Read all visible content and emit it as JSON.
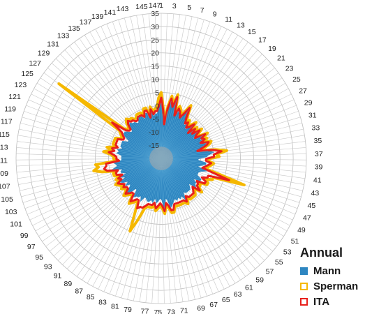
{
  "chart_data": {
    "type": "radar",
    "title": "",
    "r_ticks": [
      -15,
      -10,
      -5,
      0,
      5,
      10,
      15,
      20,
      25,
      30,
      35
    ],
    "r_range": [
      -20,
      35
    ],
    "categories": [
      1,
      2,
      3,
      4,
      5,
      6,
      7,
      8,
      9,
      10,
      11,
      12,
      13,
      14,
      15,
      16,
      17,
      18,
      19,
      20,
      21,
      22,
      23,
      24,
      25,
      26,
      27,
      28,
      29,
      30,
      31,
      32,
      33,
      34,
      35,
      36,
      37,
      38,
      39,
      40,
      41,
      42,
      43,
      44,
      45,
      46,
      47,
      48,
      49,
      50,
      51,
      52,
      53,
      54,
      55,
      56,
      57,
      58,
      59,
      60,
      61,
      62,
      63,
      64,
      65,
      66,
      67,
      68,
      69,
      70,
      71,
      72,
      73,
      74,
      75,
      76,
      77,
      78,
      79,
      80,
      81,
      82,
      83,
      84,
      85,
      86,
      87,
      88,
      89,
      90,
      91,
      92,
      93,
      94,
      95,
      96,
      97,
      98,
      99,
      100,
      101,
      102,
      103,
      104,
      105,
      106,
      107,
      108,
      109,
      110,
      111,
      112,
      113,
      114,
      115,
      116,
      117,
      118,
      119,
      120,
      121,
      122,
      123,
      124,
      125,
      126,
      127,
      128,
      129,
      130,
      131,
      132,
      133,
      134,
      135,
      136,
      137,
      138,
      139,
      140,
      141,
      142,
      143,
      144,
      145,
      146,
      147
    ],
    "category_labels_shown": [
      1,
      3,
      5,
      7,
      9,
      11,
      13,
      15,
      17,
      19,
      21,
      23,
      25,
      27,
      29,
      31,
      33,
      35,
      37,
      39,
      41,
      43,
      45,
      47,
      49,
      51,
      53,
      55,
      57,
      59,
      61,
      63,
      65,
      67,
      69,
      71,
      73,
      75,
      77,
      79,
      81,
      83,
      85,
      87,
      89,
      91,
      93,
      95,
      97,
      99,
      101,
      103,
      105,
      107,
      109,
      111,
      113,
      115,
      117,
      119,
      121,
      123,
      125,
      127,
      129,
      131,
      133,
      135,
      137,
      139,
      141,
      143,
      145,
      147
    ],
    "legend_title": "Annual",
    "legend_position": "bottom-right",
    "grid": true,
    "series": [
      {
        "name": "Mann",
        "color": "#2e86c1",
        "style": "filled",
        "values": [
          1,
          -3,
          -8,
          -2,
          2,
          -1,
          3,
          -4,
          -1,
          -2,
          -4,
          -2,
          1,
          -3,
          -5,
          -4,
          -6,
          -5,
          -3,
          -7,
          -4,
          -6,
          -3,
          -5,
          -6,
          -2,
          -4,
          -3,
          -5,
          -2,
          -3,
          -5,
          -7,
          -2,
          0,
          -2,
          -3,
          -6,
          -6,
          -3,
          -3,
          -5,
          -6,
          -2,
          -4,
          -5,
          -5,
          -5,
          -3,
          -3,
          -6,
          -4,
          -4,
          -3,
          -6,
          -5,
          -4,
          -4,
          -4,
          -4,
          -5,
          -2,
          -4,
          -3,
          -4,
          -3,
          -4,
          -3,
          -2,
          -1,
          -4,
          -5,
          -1,
          -4,
          -5,
          -4,
          -3,
          -5,
          -3,
          -4,
          -3,
          -3,
          -4,
          -4,
          -2,
          -4,
          -3,
          -3,
          -2,
          -5,
          -5,
          -2,
          -2,
          -4,
          -5,
          -3,
          -5,
          -3,
          -2,
          -5,
          -3,
          -6,
          -4,
          -4,
          -5,
          -1,
          -3,
          -3,
          -2,
          -5,
          -5,
          -5,
          -5,
          -3,
          -4,
          -3,
          -5,
          -4,
          -4,
          -4,
          -4,
          -6,
          -6,
          -4,
          -3,
          -3,
          -4,
          -5,
          -5,
          -3,
          -2,
          -3,
          -3,
          -4,
          -4,
          -2,
          -2,
          -3,
          -4,
          -2,
          -2,
          -5,
          -2,
          -4,
          -3,
          -3,
          -1
        ]
      },
      {
        "name": "Sperman",
        "color": "#f5b800",
        "style": "outline",
        "values": [
          5,
          -1,
          -6,
          0,
          4,
          1,
          5,
          -2,
          1,
          0,
          -2,
          0,
          3,
          -1,
          -3,
          -2,
          -4,
          -3,
          -1,
          -5,
          -2,
          -4,
          -1,
          -3,
          -4,
          0,
          -2,
          -1,
          -3,
          0,
          -1,
          -3,
          -5,
          1,
          5,
          1,
          2,
          -2,
          -2,
          0,
          -1,
          -2,
          -3,
          3,
          13,
          1,
          1,
          -2,
          0,
          0,
          -3,
          -2,
          -2,
          0,
          -3,
          -2,
          -1,
          -1,
          -1,
          -1,
          -2,
          0,
          -1,
          -1,
          -1,
          -1,
          -1,
          -1,
          1,
          1,
          -1,
          -2,
          1,
          -1,
          -2,
          -1,
          0,
          -2,
          -1,
          -1,
          -1,
          0,
          5,
          10,
          3,
          -1,
          -1,
          0,
          1,
          -2,
          -2,
          -1,
          0,
          -2,
          -2,
          -1,
          -2,
          -1,
          0,
          -2,
          -1,
          -3,
          -1,
          -1,
          -2,
          3,
          6,
          4,
          5,
          -3,
          -2,
          -2,
          -1,
          2,
          -1,
          1,
          -2,
          -1,
          -1,
          -1,
          -1,
          -3,
          -3,
          -2,
          -1,
          28,
          -2,
          -3,
          -3,
          -1,
          0,
          -1,
          -1,
          -2,
          -2,
          -1,
          -1,
          -1,
          -2,
          0,
          0,
          -3,
          0,
          -2,
          -1,
          -1,
          3
        ]
      },
      {
        "name": "ITA",
        "color": "#e8201c",
        "style": "outline",
        "values": [
          3,
          -2,
          -7,
          -1,
          3,
          0,
          4,
          -3,
          0,
          -1,
          -3,
          -1,
          2,
          -2,
          -4,
          -3,
          -5,
          -4,
          -2,
          -6,
          -3,
          -5,
          -2,
          -4,
          -5,
          -1,
          -3,
          -2,
          -4,
          -1,
          -2,
          -4,
          -6,
          0,
          3,
          0,
          0,
          -3,
          -3,
          -1,
          -2,
          -3,
          -4,
          0,
          7,
          -1,
          -1,
          -3,
          -1,
          -1,
          -4,
          -3,
          -3,
          -1,
          -4,
          -3,
          -2,
          -2,
          -2,
          -2,
          -3,
          -1,
          -2,
          -2,
          -2,
          -2,
          -2,
          -2,
          0,
          0,
          -2,
          -3,
          0,
          -2,
          -3,
          -2,
          -1,
          -3,
          -2,
          -2,
          -2,
          -1,
          0,
          0,
          1,
          -2,
          -2,
          -1,
          0,
          -3,
          -3,
          -2,
          -1,
          -3,
          -3,
          -2,
          -3,
          -2,
          -1,
          -3,
          -2,
          -4,
          -2,
          -2,
          -3,
          1,
          2,
          1,
          1,
          -4,
          -3,
          -3,
          -2,
          0,
          -2,
          -1,
          -3,
          -2,
          -2,
          -2,
          -2,
          -4,
          -4,
          -3,
          -2,
          3,
          -3,
          -4,
          -4,
          -2,
          -1,
          -2,
          -2,
          -3,
          -3,
          -2,
          -2,
          -2,
          -3,
          -1,
          -1,
          -4,
          -1,
          -3,
          -2,
          -2,
          0
        ]
      }
    ]
  }
}
